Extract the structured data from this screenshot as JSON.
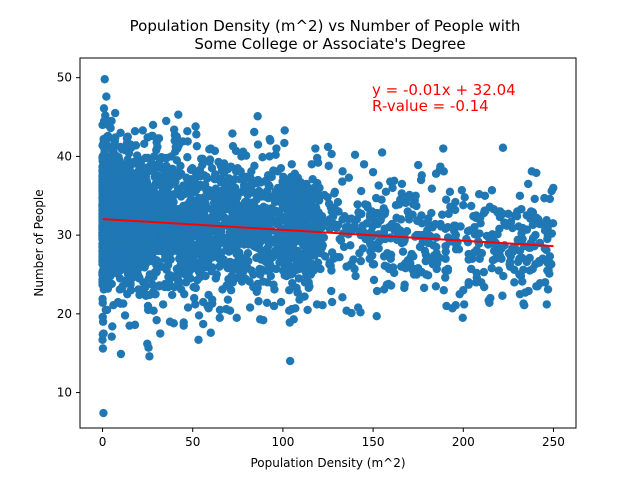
{
  "chart_data": {
    "type": "scatter",
    "title_line1": "Population Density (m^2) vs Number of People with",
    "title_line2": "Some College or Associate's Degree",
    "xlabel": "Population Density (m^2)",
    "ylabel": "Number of People",
    "xlim": [
      -12.5,
      262.5
    ],
    "ylim": [
      5.5,
      52.5
    ],
    "xticks": [
      0,
      50,
      100,
      150,
      200,
      250
    ],
    "yticks": [
      10,
      20,
      30,
      40,
      50
    ],
    "grid": false,
    "point_color": "#1f77b4",
    "regression": {
      "equation": "y = -0.01x + 32.04",
      "r_value": "R-value = -0.14",
      "slope": -0.01376,
      "intercept": 32.04,
      "x_range": [
        0,
        250
      ],
      "color": "#ff0000"
    },
    "points": [
      [
        0.5,
        7.4
      ],
      [
        1.2,
        49.8
      ],
      [
        2.1,
        47.6
      ],
      [
        0.8,
        46.1
      ],
      [
        1.5,
        45.2
      ],
      [
        3.0,
        44.0
      ],
      [
        2.5,
        42.5
      ],
      [
        1.0,
        41.0
      ],
      [
        0.3,
        19.0
      ],
      [
        0.6,
        17.5
      ],
      [
        0.2,
        15.6
      ],
      [
        1.8,
        20.5
      ],
      [
        5.4,
        18.4
      ],
      [
        10.2,
        14.9
      ],
      [
        12.5,
        19.8
      ],
      [
        24.8,
        16.2
      ],
      [
        26.0,
        14.6
      ],
      [
        25.5,
        15.7
      ],
      [
        32.0,
        17.5
      ],
      [
        30.0,
        19.2
      ],
      [
        15.0,
        18.5
      ],
      [
        45.0,
        18.9
      ],
      [
        60.0,
        17.6
      ],
      [
        65.0,
        19.5
      ],
      [
        5.0,
        44.5
      ],
      [
        7.0,
        45.5
      ],
      [
        10.0,
        43.0
      ],
      [
        14.0,
        42.5
      ],
      [
        18.0,
        43.2
      ],
      [
        25.0,
        42.4
      ],
      [
        28.0,
        44.0
      ],
      [
        30.0,
        41.8
      ],
      [
        40.0,
        42.0
      ],
      [
        42.0,
        45.3
      ],
      [
        47.0,
        43.2
      ],
      [
        52.0,
        42.8
      ],
      [
        60.0,
        41.0
      ],
      [
        72.0,
        42.9
      ],
      [
        74.0,
        40.7
      ],
      [
        77.0,
        40.0
      ],
      [
        86.0,
        45.1
      ],
      [
        93.0,
        42.0
      ],
      [
        96.0,
        40.2
      ],
      [
        104.0,
        14.0
      ],
      [
        105.0,
        20.6
      ],
      [
        112.0,
        22.2
      ],
      [
        118.0,
        41.0
      ],
      [
        122.0,
        21.1
      ],
      [
        125.0,
        41.2
      ],
      [
        127.0,
        40.3
      ],
      [
        133.0,
        22.1
      ],
      [
        138.0,
        20.1
      ],
      [
        140.0,
        40.2
      ],
      [
        143.0,
        20.2
      ],
      [
        145.0,
        39.0
      ],
      [
        150.0,
        38.0
      ],
      [
        152.0,
        19.7
      ],
      [
        155.0,
        40.5
      ],
      [
        165.0,
        34.5
      ],
      [
        175.0,
        38.9
      ],
      [
        177.0,
        25.3
      ],
      [
        183.0,
        31.0
      ],
      [
        187.0,
        38.3
      ],
      [
        190.0,
        24.6
      ],
      [
        198.0,
        22.5
      ],
      [
        200.0,
        23.0
      ],
      [
        203.0,
        24.0
      ],
      [
        210.0,
        24.0
      ],
      [
        215.0,
        22.0
      ],
      [
        222.0,
        41.1
      ],
      [
        226.0,
        26.0
      ],
      [
        232.0,
        24.8
      ],
      [
        238.0,
        38.1
      ],
      [
        240.0,
        26.3
      ],
      [
        244.0,
        27.0
      ],
      [
        248.0,
        27.3
      ],
      [
        249.0,
        35.6
      ],
      [
        236.0,
        36.5
      ],
      [
        230.0,
        33.0
      ],
      [
        218.0,
        29.0
      ],
      [
        212.0,
        35.0
      ],
      [
        205.0,
        27.0
      ],
      [
        195.0,
        30.5
      ],
      [
        185.0,
        28.5
      ],
      [
        170.0,
        32.0
      ],
      [
        160.0,
        27.5
      ],
      [
        147.0,
        33.5
      ],
      [
        135.0,
        31.0
      ],
      [
        128.0,
        27.0
      ],
      [
        115.0,
        30.0
      ],
      [
        108.0,
        34.0
      ],
      [
        100.0,
        25.5
      ]
    ]
  }
}
